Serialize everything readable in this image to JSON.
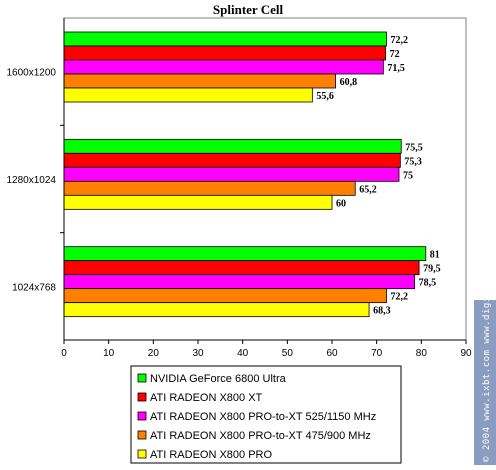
{
  "chart_data": {
    "type": "bar",
    "orientation": "horizontal",
    "title": "Splinter Cell",
    "xlabel": "",
    "ylabel": "",
    "categories": [
      "1600x1200",
      "1280x1024",
      "1024x768"
    ],
    "series": [
      {
        "name": "NVIDIA GeForce 6800 Ultra",
        "values": [
          72.2,
          75.5,
          81
        ],
        "labels": [
          "72,2",
          "75,5",
          "81"
        ],
        "color": "#00ff00"
      },
      {
        "name": "ATI RADEON X800 XT",
        "values": [
          72,
          75.3,
          79.5
        ],
        "labels": [
          "72",
          "75,3",
          "79,5"
        ],
        "color": "#ff0000"
      },
      {
        "name": "ATI RADEON X800 PRO-to-XT 525/1150 MHz",
        "values": [
          71.5,
          75,
          78.5
        ],
        "labels": [
          "71,5",
          "75",
          "78,5"
        ],
        "color": "#ff00ff"
      },
      {
        "name": "ATI RADEON X800 PRO-to-XT 475/900 MHz",
        "values": [
          60.8,
          65.2,
          72.2
        ],
        "labels": [
          "60,8",
          "65,2",
          "72,2"
        ],
        "color": "#ff8000"
      },
      {
        "name": "ATI RADEON X800 PRO",
        "values": [
          55.6,
          60,
          68.3
        ],
        "labels": [
          "55,6",
          "60",
          "68,3"
        ],
        "color": "#ffff00"
      }
    ],
    "xlim": [
      0,
      90
    ],
    "xticks": [
      0,
      10,
      20,
      30,
      40,
      50,
      60,
      70,
      80,
      90
    ],
    "grid": false,
    "legend_position": "bottom"
  },
  "watermark": "© 2004 www.ixbt.com  www.digit-life.com"
}
